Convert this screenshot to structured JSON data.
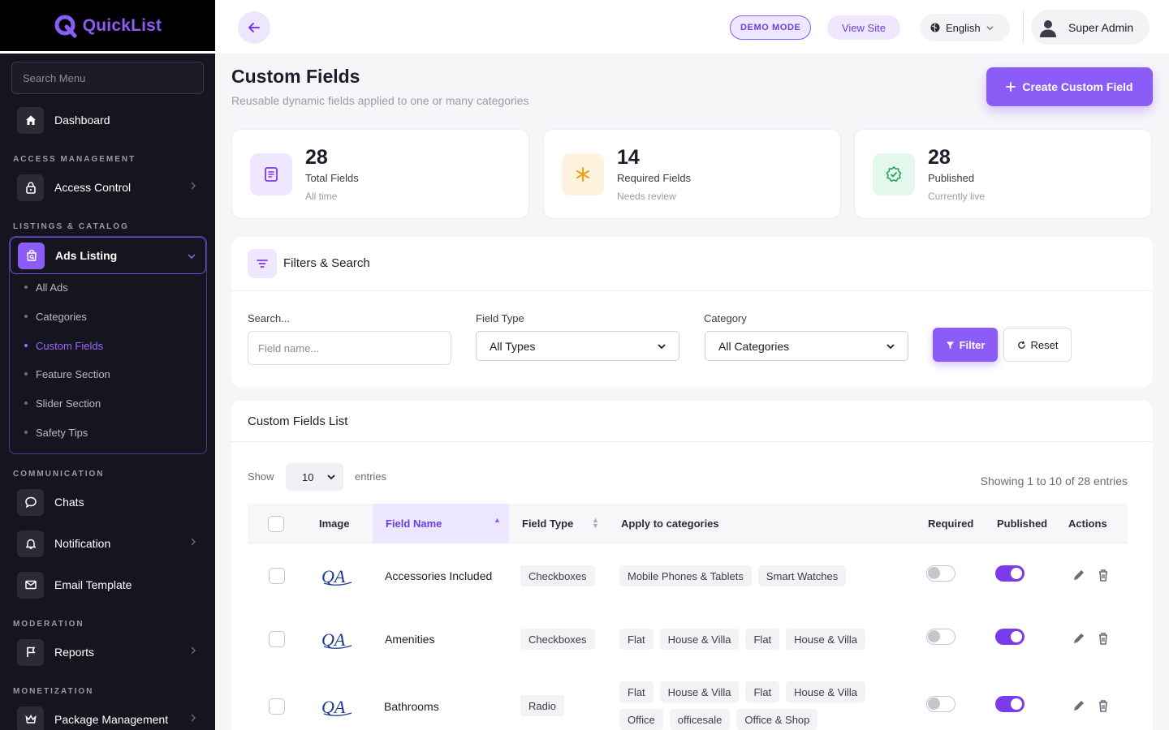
{
  "brand": {
    "name": "QuickList"
  },
  "sidebar": {
    "search_placeholder": "Search Menu",
    "dashboard": "Dashboard",
    "sections": {
      "access": "ACCESS MANAGEMENT",
      "listings": "LISTINGS & CATALOG",
      "communication": "COMMUNICATION",
      "moderation": "MODERATION",
      "monetization": "MONETIZATION"
    },
    "access_control": "Access Control",
    "ads_listing": "Ads Listing",
    "sub_items": [
      "All Ads",
      "Categories",
      "Custom Fields",
      "Feature Section",
      "Slider Section",
      "Safety Tips"
    ],
    "active_sub": "Custom Fields",
    "chats": "Chats",
    "notification": "Notification",
    "email_template": "Email Template",
    "reports": "Reports",
    "package_management": "Package Management"
  },
  "topbar": {
    "demo_mode": "DEMO MODE",
    "view_site": "View Site",
    "language": "English",
    "user": "Super Admin"
  },
  "page": {
    "title": "Custom Fields",
    "subtitle": "Reusable dynamic fields applied to one or many categories",
    "create_button": "Create Custom Field"
  },
  "stats": [
    {
      "value": "28",
      "label": "Total Fields",
      "note": "All time",
      "icon": "document-icon",
      "tone": "#efe7ff",
      "color": "#7c3aed"
    },
    {
      "value": "14",
      "label": "Required Fields",
      "note": "Needs review",
      "icon": "asterisk-icon",
      "tone": "#fff3df",
      "color": "#f59e0b"
    },
    {
      "value": "28",
      "label": "Published",
      "note": "Currently live",
      "icon": "verified-icon",
      "tone": "#e3f7ec",
      "color": "#22a55a"
    }
  ],
  "filters": {
    "title": "Filters & Search",
    "search_label": "Search...",
    "search_placeholder": "Field name...",
    "type_label": "Field Type",
    "type_value": "All Types",
    "category_label": "Category",
    "category_value": "All Categories",
    "filter_button": "Filter",
    "reset_button": "Reset"
  },
  "table": {
    "title": "Custom Fields List",
    "show_label": "Show",
    "page_length": "10",
    "entries_label": "entries",
    "showing_text": "Showing 1 to 10 of 28 entries",
    "headers": {
      "image": "Image",
      "field_name": "Field Name",
      "field_type": "Field Type",
      "categories": "Apply to categories",
      "required": "Required",
      "published": "Published",
      "actions": "Actions"
    },
    "rows": [
      {
        "name": "Accessories Included",
        "type": "Checkboxes",
        "categories": [
          "Mobile Phones & Tablets",
          "Smart Watches"
        ],
        "required": false,
        "published": true
      },
      {
        "name": "Amenities",
        "type": "Checkboxes",
        "categories": [
          "Flat",
          "House & Villa",
          "Flat",
          "House & Villa"
        ],
        "required": false,
        "published": true
      },
      {
        "name": "Bathrooms",
        "type": "Radio",
        "categories": [
          "Flat",
          "House & Villa",
          "Flat",
          "House & Villa",
          "Office",
          "officesale",
          "Office & Shop"
        ],
        "required": false,
        "published": true
      }
    ]
  }
}
